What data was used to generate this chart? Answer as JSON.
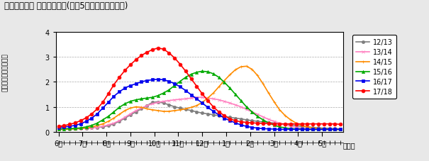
{
  "title": "（参考）全国 週別発生動向(過去5シーズンとの比較)",
  "ylabel": "定点当たり患者報告数",
  "xlabel_weeks": "（週）",
  "month_labels": [
    "6月",
    "7月",
    "8月",
    "9月",
    "10月",
    "11月",
    "12月",
    "1月",
    "2月",
    "3月",
    "4月",
    "5月"
  ],
  "ylim": [
    0,
    4
  ],
  "yticks": [
    0,
    1,
    2,
    3,
    4
  ],
  "seasons": [
    "12/13",
    "13/14",
    "14/15",
    "15/16",
    "16/17",
    "17/18"
  ],
  "colors": [
    "#7f7f7f",
    "#ff80c0",
    "#ff8c00",
    "#00aa00",
    "#0000ee",
    "#ff0000"
  ],
  "num_weeks": 52,
  "month_tick_positions": [
    0,
    4.33,
    8.67,
    13.0,
    17.33,
    21.67,
    26.0,
    30.33,
    34.67,
    39.0,
    43.33,
    47.67
  ],
  "data": {
    "12/13": [
      0.13,
      0.13,
      0.12,
      0.13,
      0.14,
      0.15,
      0.16,
      0.18,
      0.2,
      0.25,
      0.32,
      0.42,
      0.55,
      0.68,
      0.8,
      0.92,
      1.05,
      1.18,
      1.2,
      1.15,
      1.08,
      1.0,
      0.95,
      0.9,
      0.85,
      0.8,
      0.75,
      0.72,
      0.68,
      0.65,
      0.62,
      0.58,
      0.55,
      0.52,
      0.48,
      0.45,
      0.42,
      0.4,
      0.38,
      0.35,
      0.32,
      0.3,
      0.28,
      0.25,
      0.22,
      0.2,
      0.18,
      0.16,
      0.15,
      0.14,
      0.13,
      0.12
    ],
    "13/14": [
      0.1,
      0.1,
      0.11,
      0.12,
      0.13,
      0.14,
      0.15,
      0.18,
      0.22,
      0.28,
      0.35,
      0.45,
      0.58,
      0.72,
      0.85,
      0.95,
      1.05,
      1.12,
      1.18,
      1.22,
      1.25,
      1.28,
      1.3,
      1.32,
      1.35,
      1.38,
      1.38,
      1.35,
      1.32,
      1.28,
      1.22,
      1.15,
      1.08,
      1.0,
      0.9,
      0.8,
      0.7,
      0.6,
      0.5,
      0.42,
      0.35,
      0.28,
      0.22,
      0.18,
      0.15,
      0.13,
      0.12,
      0.11,
      0.1,
      0.1,
      0.1,
      0.1
    ],
    "14/15": [
      0.1,
      0.1,
      0.11,
      0.12,
      0.14,
      0.16,
      0.2,
      0.25,
      0.32,
      0.42,
      0.55,
      0.7,
      0.85,
      0.95,
      1.0,
      0.98,
      0.92,
      0.88,
      0.85,
      0.82,
      0.82,
      0.85,
      0.88,
      0.92,
      0.98,
      1.05,
      1.18,
      1.35,
      1.55,
      1.8,
      2.05,
      2.28,
      2.48,
      2.6,
      2.62,
      2.5,
      2.25,
      1.92,
      1.55,
      1.2,
      0.88,
      0.65,
      0.48,
      0.35,
      0.25,
      0.2,
      0.16,
      0.14,
      0.12,
      0.11,
      0.1,
      0.1
    ],
    "15/16": [
      0.12,
      0.12,
      0.13,
      0.14,
      0.16,
      0.2,
      0.26,
      0.35,
      0.48,
      0.62,
      0.8,
      0.98,
      1.12,
      1.22,
      1.28,
      1.32,
      1.35,
      1.38,
      1.45,
      1.55,
      1.68,
      1.85,
      2.02,
      2.18,
      2.3,
      2.38,
      2.42,
      2.4,
      2.32,
      2.18,
      1.98,
      1.75,
      1.5,
      1.25,
      1.0,
      0.8,
      0.62,
      0.48,
      0.36,
      0.27,
      0.2,
      0.16,
      0.13,
      0.12,
      0.11,
      0.1,
      0.1,
      0.1,
      0.1,
      0.1,
      0.1,
      0.1
    ],
    "16/17": [
      0.18,
      0.2,
      0.22,
      0.26,
      0.32,
      0.42,
      0.55,
      0.72,
      0.95,
      1.18,
      1.42,
      1.6,
      1.75,
      1.85,
      1.92,
      2.0,
      2.05,
      2.08,
      2.1,
      2.08,
      2.02,
      1.92,
      1.8,
      1.65,
      1.48,
      1.32,
      1.15,
      0.98,
      0.82,
      0.68,
      0.55,
      0.45,
      0.36,
      0.28,
      0.22,
      0.18,
      0.15,
      0.13,
      0.12,
      0.11,
      0.1,
      0.1,
      0.1,
      0.1,
      0.1,
      0.1,
      0.1,
      0.1,
      0.1,
      0.1,
      0.1,
      0.1
    ],
    "17/18": [
      0.22,
      0.25,
      0.3,
      0.36,
      0.45,
      0.56,
      0.72,
      0.92,
      1.18,
      1.52,
      1.88,
      2.18,
      2.45,
      2.68,
      2.88,
      3.05,
      3.18,
      3.28,
      3.35,
      3.3,
      3.15,
      2.95,
      2.7,
      2.42,
      2.12,
      1.82,
      1.52,
      1.25,
      1.0,
      0.8,
      0.65,
      0.52,
      0.45,
      0.4,
      0.38,
      0.36,
      0.35,
      0.34,
      0.33,
      0.32,
      0.32,
      0.32,
      0.32,
      0.32,
      0.32,
      0.32,
      0.32,
      0.32,
      0.32,
      0.32,
      0.32,
      0.3
    ]
  },
  "background_color": "#e8e8e8",
  "plot_bg": "#ffffff"
}
